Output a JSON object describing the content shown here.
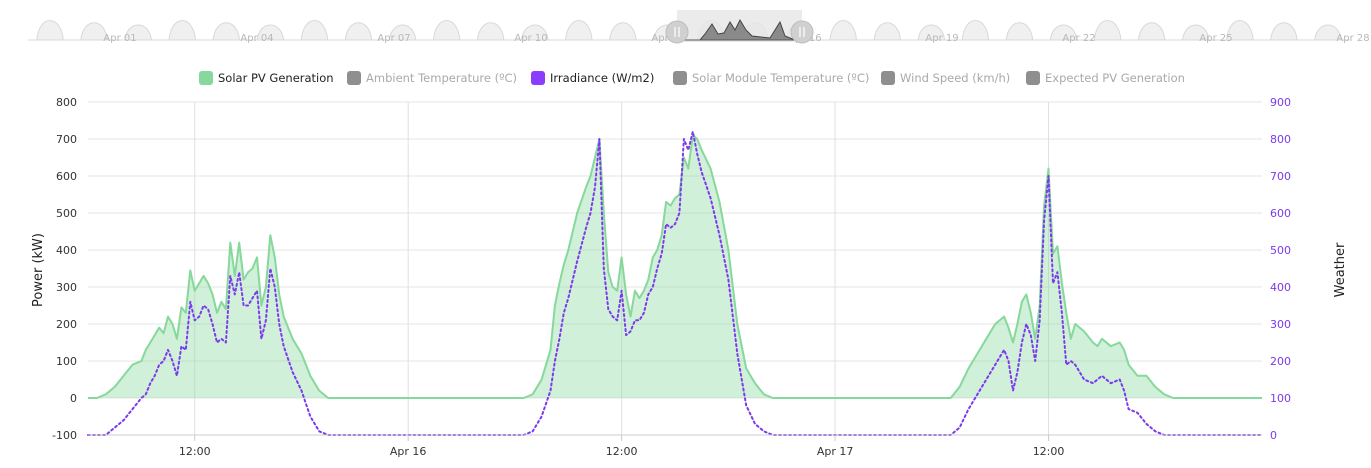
{
  "chart_data": {
    "type": "area",
    "title": "",
    "left_axis": {
      "label": "Power (kW)",
      "range": [
        -100,
        800
      ],
      "ticks": [
        "800",
        "700",
        "600",
        "500",
        "400",
        "300",
        "200",
        "100",
        "0",
        "-100"
      ]
    },
    "right_axis": {
      "label": "Weather",
      "range": [
        0,
        900
      ],
      "ticks": [
        "900",
        "800",
        "700",
        "600",
        "500",
        "400",
        "300",
        "200",
        "100",
        "0"
      ]
    },
    "x_axis": {
      "ticks": [
        "12:00",
        "Apr 16",
        "12:00",
        "Apr 17",
        "12:00"
      ]
    },
    "legend": [
      {
        "name": "Solar PV Generation",
        "color": "#86d89b",
        "active": true
      },
      {
        "name": "Ambient Temperature (ºC)",
        "color": "#8f8f8f",
        "active": false
      },
      {
        "name": "Irradiance (W/m2)",
        "color": "#8b3dff",
        "active": true
      },
      {
        "name": "Solar Module Temperature (ºC)",
        "color": "#8f8f8f",
        "active": false
      },
      {
        "name": "Wind Speed (km/h)",
        "color": "#8f8f8f",
        "active": false
      },
      {
        "name": "Expected PV Generation",
        "color": "#8f8f8f",
        "active": false
      }
    ],
    "navigator": {
      "labels": [
        "Apr 01",
        "Apr 04",
        "Apr 07",
        "Apr 10",
        "Apr 13",
        "Apr 16",
        "Apr 19",
        "Apr 22",
        "Apr 25",
        "Apr 28"
      ]
    },
    "grid": true,
    "series": [
      {
        "name": "Solar PV Generation",
        "axis": "left",
        "style": "area",
        "color": "#86d89b",
        "points": [
          [
            6,
            0
          ],
          [
            6.5,
            0
          ],
          [
            7,
            10
          ],
          [
            7.5,
            30
          ],
          [
            8,
            60
          ],
          [
            8.5,
            90
          ],
          [
            9,
            100
          ],
          [
            9.25,
            130
          ],
          [
            9.5,
            150
          ],
          [
            9.75,
            170
          ],
          [
            10,
            190
          ],
          [
            10.25,
            175
          ],
          [
            10.5,
            220
          ],
          [
            10.75,
            200
          ],
          [
            11,
            160
          ],
          [
            11.25,
            245
          ],
          [
            11.5,
            230
          ],
          [
            11.75,
            345
          ],
          [
            12,
            290
          ],
          [
            12.25,
            310
          ],
          [
            12.5,
            330
          ],
          [
            12.75,
            310
          ],
          [
            13,
            280
          ],
          [
            13.25,
            230
          ],
          [
            13.5,
            260
          ],
          [
            13.75,
            240
          ],
          [
            14,
            420
          ],
          [
            14.25,
            330
          ],
          [
            14.5,
            420
          ],
          [
            14.75,
            320
          ],
          [
            15,
            340
          ],
          [
            15.25,
            350
          ],
          [
            15.5,
            380
          ],
          [
            15.75,
            250
          ],
          [
            16,
            300
          ],
          [
            16.25,
            440
          ],
          [
            16.5,
            380
          ],
          [
            16.75,
            280
          ],
          [
            17,
            220
          ],
          [
            17.5,
            160
          ],
          [
            18,
            120
          ],
          [
            18.5,
            60
          ],
          [
            19,
            20
          ],
          [
            19.5,
            0
          ],
          [
            20,
            0
          ],
          [
            30,
            0
          ],
          [
            30.5,
            0
          ],
          [
            31,
            10
          ],
          [
            31.5,
            50
          ],
          [
            32,
            130
          ],
          [
            32.25,
            250
          ],
          [
            32.5,
            310
          ],
          [
            32.75,
            360
          ],
          [
            33,
            400
          ],
          [
            33.5,
            500
          ],
          [
            34,
            570
          ],
          [
            34.25,
            600
          ],
          [
            34.5,
            650
          ],
          [
            34.75,
            700
          ],
          [
            35,
            500
          ],
          [
            35.25,
            340
          ],
          [
            35.5,
            300
          ],
          [
            35.75,
            290
          ],
          [
            36,
            380
          ],
          [
            36.25,
            280
          ],
          [
            36.5,
            220
          ],
          [
            36.75,
            290
          ],
          [
            37,
            270
          ],
          [
            37.25,
            290
          ],
          [
            37.5,
            320
          ],
          [
            37.75,
            380
          ],
          [
            38,
            400
          ],
          [
            38.25,
            440
          ],
          [
            38.5,
            530
          ],
          [
            38.75,
            520
          ],
          [
            39,
            540
          ],
          [
            39.25,
            550
          ],
          [
            39.5,
            650
          ],
          [
            39.75,
            620
          ],
          [
            40,
            710
          ],
          [
            40.25,
            700
          ],
          [
            40.5,
            670
          ],
          [
            41,
            620
          ],
          [
            41.5,
            530
          ],
          [
            42,
            400
          ],
          [
            42.5,
            200
          ],
          [
            43,
            80
          ],
          [
            43.5,
            40
          ],
          [
            44,
            10
          ],
          [
            44.5,
            0
          ],
          [
            45,
            0
          ],
          [
            54,
            0
          ],
          [
            54.5,
            0
          ],
          [
            55,
            30
          ],
          [
            55.5,
            80
          ],
          [
            56,
            120
          ],
          [
            56.5,
            160
          ],
          [
            57,
            200
          ],
          [
            57.5,
            220
          ],
          [
            57.75,
            190
          ],
          [
            58,
            150
          ],
          [
            58.25,
            200
          ],
          [
            58.5,
            260
          ],
          [
            58.75,
            280
          ],
          [
            59,
            230
          ],
          [
            59.25,
            160
          ],
          [
            59.5,
            250
          ],
          [
            59.75,
            520
          ],
          [
            60,
            620
          ],
          [
            60.25,
            390
          ],
          [
            60.5,
            410
          ],
          [
            60.75,
            310
          ],
          [
            61,
            230
          ],
          [
            61.25,
            160
          ],
          [
            61.5,
            200
          ],
          [
            62,
            180
          ],
          [
            62.5,
            150
          ],
          [
            62.75,
            140
          ],
          [
            63,
            160
          ],
          [
            63.5,
            140
          ],
          [
            64,
            150
          ],
          [
            64.25,
            130
          ],
          [
            64.5,
            90
          ],
          [
            65,
            60
          ],
          [
            65.5,
            60
          ],
          [
            66,
            30
          ],
          [
            66.5,
            10
          ],
          [
            67,
            0
          ],
          [
            72,
            0
          ]
        ]
      },
      {
        "name": "Irradiance (W/m2)",
        "axis": "right",
        "style": "dotted-line",
        "color": "#7c3aed",
        "points": [
          [
            6,
            0
          ],
          [
            6.5,
            0
          ],
          [
            7,
            0
          ],
          [
            7.5,
            20
          ],
          [
            8,
            40
          ],
          [
            8.5,
            70
          ],
          [
            9,
            100
          ],
          [
            9.25,
            110
          ],
          [
            9.5,
            140
          ],
          [
            9.75,
            160
          ],
          [
            10,
            190
          ],
          [
            10.25,
            200
          ],
          [
            10.5,
            230
          ],
          [
            10.75,
            200
          ],
          [
            11,
            160
          ],
          [
            11.25,
            240
          ],
          [
            11.5,
            230
          ],
          [
            11.75,
            360
          ],
          [
            12,
            310
          ],
          [
            12.25,
            320
          ],
          [
            12.5,
            350
          ],
          [
            12.75,
            340
          ],
          [
            13,
            300
          ],
          [
            13.25,
            250
          ],
          [
            13.5,
            260
          ],
          [
            13.75,
            250
          ],
          [
            14,
            430
          ],
          [
            14.25,
            380
          ],
          [
            14.5,
            440
          ],
          [
            14.75,
            350
          ],
          [
            15,
            350
          ],
          [
            15.25,
            370
          ],
          [
            15.5,
            390
          ],
          [
            15.75,
            260
          ],
          [
            16,
            310
          ],
          [
            16.25,
            450
          ],
          [
            16.5,
            400
          ],
          [
            16.75,
            300
          ],
          [
            17,
            240
          ],
          [
            17.5,
            170
          ],
          [
            18,
            120
          ],
          [
            18.5,
            50
          ],
          [
            19,
            10
          ],
          [
            19.5,
            0
          ],
          [
            20,
            0
          ],
          [
            30,
            0
          ],
          [
            30.5,
            0
          ],
          [
            31,
            10
          ],
          [
            31.5,
            50
          ],
          [
            32,
            120
          ],
          [
            32.25,
            200
          ],
          [
            32.5,
            260
          ],
          [
            32.75,
            330
          ],
          [
            33,
            370
          ],
          [
            33.5,
            470
          ],
          [
            34,
            560
          ],
          [
            34.25,
            600
          ],
          [
            34.5,
            670
          ],
          [
            34.75,
            800
          ],
          [
            35,
            450
          ],
          [
            35.25,
            340
          ],
          [
            35.5,
            320
          ],
          [
            35.75,
            310
          ],
          [
            36,
            390
          ],
          [
            36.25,
            270
          ],
          [
            36.5,
            280
          ],
          [
            36.75,
            310
          ],
          [
            37,
            310
          ],
          [
            37.25,
            330
          ],
          [
            37.5,
            380
          ],
          [
            37.75,
            400
          ],
          [
            38,
            450
          ],
          [
            38.25,
            490
          ],
          [
            38.5,
            570
          ],
          [
            38.75,
            560
          ],
          [
            39,
            570
          ],
          [
            39.25,
            600
          ],
          [
            39.5,
            800
          ],
          [
            39.75,
            770
          ],
          [
            40,
            820
          ],
          [
            40.25,
            760
          ],
          [
            40.5,
            710
          ],
          [
            41,
            640
          ],
          [
            41.5,
            540
          ],
          [
            42,
            420
          ],
          [
            42.5,
            220
          ],
          [
            43,
            80
          ],
          [
            43.5,
            30
          ],
          [
            44,
            10
          ],
          [
            44.5,
            0
          ],
          [
            45,
            0
          ],
          [
            54,
            0
          ],
          [
            54.5,
            0
          ],
          [
            55,
            20
          ],
          [
            55.5,
            70
          ],
          [
            56,
            110
          ],
          [
            56.5,
            150
          ],
          [
            57,
            190
          ],
          [
            57.5,
            230
          ],
          [
            57.75,
            200
          ],
          [
            58,
            120
          ],
          [
            58.25,
            170
          ],
          [
            58.5,
            250
          ],
          [
            58.75,
            300
          ],
          [
            59,
            270
          ],
          [
            59.25,
            200
          ],
          [
            59.5,
            310
          ],
          [
            59.75,
            580
          ],
          [
            60,
            700
          ],
          [
            60.25,
            410
          ],
          [
            60.5,
            440
          ],
          [
            60.75,
            330
          ],
          [
            61,
            190
          ],
          [
            61.25,
            200
          ],
          [
            61.5,
            190
          ],
          [
            62,
            150
          ],
          [
            62.5,
            140
          ],
          [
            62.75,
            150
          ],
          [
            63,
            160
          ],
          [
            63.5,
            140
          ],
          [
            64,
            150
          ],
          [
            64.25,
            120
          ],
          [
            64.5,
            70
          ],
          [
            65,
            60
          ],
          [
            65.5,
            30
          ],
          [
            66,
            10
          ],
          [
            66.5,
            0
          ],
          [
            67,
            0
          ],
          [
            72,
            0
          ]
        ]
      }
    ]
  }
}
